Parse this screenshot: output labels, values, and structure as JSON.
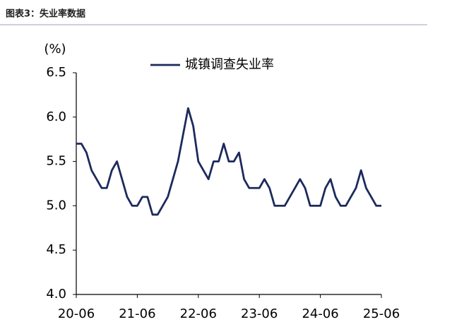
{
  "title": "图表3：失业率数据",
  "chart_data": {
    "type": "line",
    "y_label": "(%)",
    "categories": [
      "20-06",
      null,
      null,
      null,
      null,
      null,
      null,
      null,
      null,
      null,
      null,
      null,
      "21-06",
      null,
      null,
      null,
      null,
      null,
      null,
      null,
      null,
      null,
      null,
      null,
      "22-06",
      null,
      null,
      null,
      null,
      null,
      null,
      null,
      null,
      null,
      null,
      null,
      "23-06",
      null,
      null,
      null,
      null,
      null,
      null,
      null,
      null,
      null,
      null,
      null,
      "24-06",
      null,
      null,
      null,
      null,
      null,
      null,
      null,
      null,
      null,
      null,
      null,
      "25-06"
    ],
    "series": [
      {
        "name": "城镇调查失业率",
        "color": "#1c2a5c",
        "values": [
          5.7,
          5.7,
          5.6,
          5.4,
          5.3,
          5.2,
          5.2,
          5.4,
          5.5,
          5.3,
          5.1,
          5.0,
          5.0,
          5.1,
          5.1,
          4.9,
          4.9,
          5.0,
          5.1,
          5.3,
          5.5,
          5.8,
          6.1,
          5.9,
          5.5,
          5.4,
          5.3,
          5.5,
          5.5,
          5.7,
          5.5,
          5.5,
          5.6,
          5.3,
          5.2,
          5.2,
          5.2,
          5.3,
          5.2,
          5.0,
          5.0,
          5.0,
          5.1,
          5.2,
          5.3,
          5.2,
          5.0,
          5.0,
          5.0,
          5.2,
          5.3,
          5.1,
          5.0,
          5.0,
          5.1,
          5.2,
          5.4,
          5.2,
          5.1,
          5.0,
          5.0
        ]
      }
    ],
    "ylim": [
      4,
      6.5
    ],
    "yticks": [
      {
        "value": 4,
        "label": "4.0"
      },
      4.5,
      {
        "value": 5,
        "label": "5.0"
      },
      5.5,
      {
        "value": 6,
        "label": "6.0"
      },
      6.5
    ],
    "legend": "top-left",
    "grid": false
  }
}
